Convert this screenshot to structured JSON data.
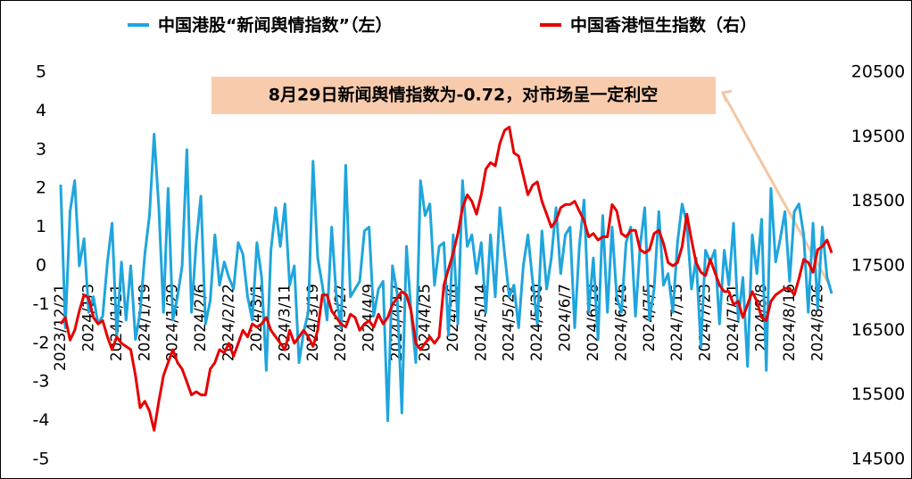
{
  "chart_data": {
    "type": "line",
    "legend_position": "top",
    "annotation": "8月29日新闻舆情指数为-0.72，对市场呈一定利空",
    "categories": [
      "2023/12/21",
      null,
      null,
      null,
      null,
      null,
      "2024/1/3",
      null,
      null,
      null,
      null,
      null,
      "2024/1/11",
      null,
      null,
      null,
      null,
      null,
      "2024/1/19",
      null,
      null,
      null,
      null,
      null,
      "2024/1/29",
      null,
      null,
      null,
      null,
      null,
      "2024/2/6",
      null,
      null,
      null,
      null,
      null,
      "2024/2/22",
      null,
      null,
      null,
      null,
      null,
      "2024/3/1",
      null,
      null,
      null,
      null,
      null,
      "2024/3/11",
      null,
      null,
      null,
      null,
      null,
      "2024/3/19",
      null,
      null,
      null,
      null,
      null,
      "2024/3/27",
      null,
      null,
      null,
      null,
      null,
      "2024/4/9",
      null,
      null,
      null,
      null,
      null,
      "2024/4/17",
      null,
      null,
      null,
      null,
      null,
      "2024/4/25",
      null,
      null,
      null,
      null,
      null,
      "2024/5/6",
      null,
      null,
      null,
      null,
      null,
      "2024/5/14",
      null,
      null,
      null,
      null,
      null,
      "2024/5/22",
      null,
      null,
      null,
      null,
      null,
      "2024/5/30",
      null,
      null,
      null,
      null,
      null,
      "2024/6/7",
      null,
      null,
      null,
      null,
      null,
      "2024/6/18",
      null,
      null,
      null,
      null,
      null,
      "2024/6/26",
      null,
      null,
      null,
      null,
      null,
      "2024/7/5",
      null,
      null,
      null,
      null,
      null,
      "2024/7/15",
      null,
      null,
      null,
      null,
      null,
      "2024/7/23",
      null,
      null,
      null,
      null,
      null,
      "2024/7/31",
      null,
      null,
      null,
      null,
      null,
      "2024/8/8",
      null,
      null,
      null,
      null,
      null,
      "2024/8/16",
      null,
      null,
      null,
      null,
      null,
      "2024/8/26",
      null,
      null,
      null
    ],
    "ylim": [
      -5,
      5
    ],
    "yticks": [
      -5,
      -4,
      -3,
      -2,
      -1,
      0,
      1,
      2,
      3,
      4,
      5
    ],
    "y2lim": [
      14500,
      20500
    ],
    "y2ticks": [
      14500,
      15500,
      16500,
      17500,
      18500,
      19500,
      20500
    ],
    "series": [
      {
        "name": "中国港股“新闻舆情指数”（左）",
        "color": "#1fa5dd",
        "axis": "y",
        "values": [
          2.1,
          -1.6,
          1.4,
          2.2,
          0,
          0.7,
          -1.2,
          -0.8,
          -1.5,
          -1.3,
          0.1,
          1.1,
          -1.8,
          0.1,
          -1.4,
          0,
          -1.9,
          -1.2,
          0.3,
          1.3,
          3.4,
          1.5,
          -1.2,
          2.0,
          -1.4,
          -0.8,
          0,
          3.0,
          -1.2,
          0.6,
          1.8,
          -1.5,
          -0.9,
          0.8,
          -0.5,
          0.1,
          -0.3,
          -0.6,
          0.6,
          0.3,
          -0.8,
          -1.4,
          0.6,
          -0.3,
          -2.7,
          0.4,
          1.5,
          0.5,
          1.6,
          -0.5,
          0,
          -2.5,
          -1.7,
          -1.2,
          2.7,
          0.2,
          -0.5,
          -1.4,
          1.0,
          -0.8,
          -1.6,
          2.6,
          -0.8,
          -0.6,
          -0.4,
          0.9,
          1.0,
          -1.3,
          -0.6,
          -0.4,
          -4.0,
          0.0,
          -0.7,
          -3.8,
          0.5,
          -1.2,
          -2.5,
          2.2,
          1.3,
          1.6,
          -0.5,
          0.5,
          0.6,
          -1.8,
          0.8,
          -1.5,
          2.2,
          0.5,
          0.8,
          -0.2,
          0.6,
          -1.2,
          0.8,
          -0.8,
          1.5,
          0.3,
          -0.8,
          -0.5,
          -1.6,
          0,
          0.8,
          -0.4,
          -1.5,
          0.9,
          -0.6,
          0.2,
          1.5,
          -0.2,
          0.8,
          1.0,
          -1.6,
          0.5,
          1.7,
          -1.2,
          0.2,
          -1.9,
          1.3,
          -1.2,
          1.0,
          -0.8,
          -1.2,
          0.6,
          1.0,
          -1.3,
          0.5,
          1.5,
          -1.4,
          -0.6,
          1.4,
          -0.5,
          -0.2,
          -1.2,
          0.6,
          1.6,
          1.1,
          -0.6,
          0.2,
          -2.1,
          0.4,
          0.1,
          0.4,
          -1.5,
          0.4,
          -0.5,
          1.1,
          -1.4,
          -0.3,
          -2.6,
          0.8,
          -0.2,
          1.2,
          -2.7,
          2.0,
          0.1,
          0.7,
          1.4,
          -0.4,
          1.4,
          1.6,
          0.8,
          -1.2,
          1.1,
          -1.1,
          1.0,
          -0.3,
          -0.72
        ]
      },
      {
        "name": "中国香港恒生指数（右）",
        "color": "#e60000",
        "axis": "y2",
        "values": [
          16600,
          16700,
          16350,
          16500,
          16800,
          17050,
          17000,
          16700,
          16600,
          16650,
          16400,
          16200,
          16400,
          16300,
          16250,
          16200,
          15800,
          15300,
          15400,
          15250,
          14950,
          15400,
          15800,
          16000,
          16200,
          16000,
          15900,
          15700,
          15500,
          15550,
          15500,
          15500,
          15900,
          16000,
          16200,
          16150,
          16300,
          16100,
          16300,
          16500,
          16400,
          16600,
          16550,
          16600,
          16700,
          16500,
          16400,
          16300,
          16200,
          16500,
          16300,
          16400,
          16500,
          16400,
          16250,
          16500,
          17050,
          17050,
          16800,
          16700,
          16600,
          16550,
          16750,
          16700,
          16500,
          16600,
          16650,
          16550,
          16750,
          16600,
          16700,
          16900,
          17000,
          17100,
          17050,
          16800,
          16300,
          16200,
          16300,
          16400,
          16300,
          16400,
          17200,
          17450,
          17700,
          18000,
          18400,
          18600,
          18500,
          18300,
          18600,
          19000,
          19100,
          19050,
          19400,
          19600,
          19650,
          19250,
          19200,
          18900,
          18600,
          18750,
          18800,
          18500,
          18300,
          18100,
          18200,
          18400,
          18450,
          18450,
          18500,
          18350,
          18200,
          17950,
          18000,
          17900,
          17950,
          17950,
          18450,
          18350,
          18000,
          17950,
          18050,
          18050,
          17750,
          17700,
          17750,
          18000,
          18050,
          17850,
          17550,
          17500,
          17550,
          17800,
          18300,
          17900,
          17550,
          17400,
          17350,
          17600,
          17400,
          17200,
          17100,
          17100,
          16900,
          16950,
          16700,
          16900,
          17100,
          16950,
          16700,
          16650,
          16950,
          17050,
          17100,
          17150,
          17150,
          17050,
          17300,
          17600,
          17550,
          17400,
          17750,
          17800,
          17900,
          17700
        ]
      }
    ]
  }
}
